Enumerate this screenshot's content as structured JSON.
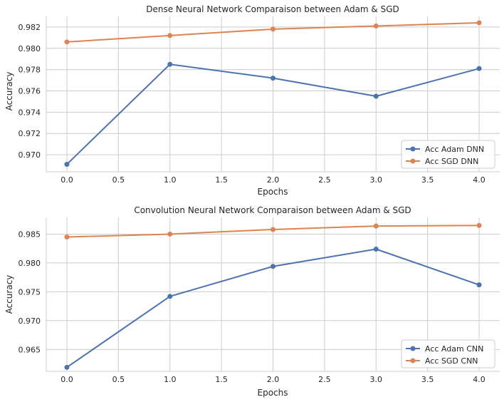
{
  "chart_data": [
    {
      "type": "line",
      "title": "Dense Neural Network Comparaison between Adam & SGD",
      "xlabel": "Epochs",
      "ylabel": "Accuracy",
      "xlim": [
        -0.2,
        4.2
      ],
      "ylim": [
        0.9684,
        0.983
      ],
      "xticks": [
        "0.0",
        "0.5",
        "1.0",
        "1.5",
        "2.0",
        "2.5",
        "3.0",
        "3.5",
        "4.0"
      ],
      "yticks": [
        "0.970",
        "0.972",
        "0.974",
        "0.976",
        "0.978",
        "0.980",
        "0.982"
      ],
      "grid": true,
      "legend_position": "lower-right",
      "x": [
        0,
        1,
        2,
        3,
        4
      ],
      "series": [
        {
          "name": "Acc Adam DNN",
          "color": "#4c72b0",
          "values": [
            0.9691,
            0.9785,
            0.9772,
            0.9755,
            0.9781
          ]
        },
        {
          "name": "Acc SGD DNN",
          "color": "#dd8452",
          "values": [
            0.9806,
            0.9812,
            0.9818,
            0.9821,
            0.9824
          ]
        }
      ]
    },
    {
      "type": "line",
      "title": "Convolution Neural Network Comparaison between Adam & SGD",
      "xlabel": "Epochs",
      "ylabel": "Accuracy",
      "xlim": [
        -0.2,
        4.2
      ],
      "ylim": [
        0.9612,
        0.9879
      ],
      "xticks": [
        "0.0",
        "0.5",
        "1.0",
        "1.5",
        "2.0",
        "2.5",
        "3.0",
        "3.5",
        "4.0"
      ],
      "yticks": [
        "0.965",
        "0.970",
        "0.975",
        "0.980",
        "0.985"
      ],
      "grid": true,
      "legend_position": "lower-right",
      "x": [
        0,
        1,
        2,
        3,
        4
      ],
      "series": [
        {
          "name": "Acc Adam CNN",
          "color": "#4c72b0",
          "values": [
            0.9619,
            0.9742,
            0.9794,
            0.9824,
            0.9762
          ]
        },
        {
          "name": "Acc SGD CNN",
          "color": "#dd8452",
          "values": [
            0.9845,
            0.985,
            0.9858,
            0.9864,
            0.9865
          ]
        }
      ]
    }
  ]
}
